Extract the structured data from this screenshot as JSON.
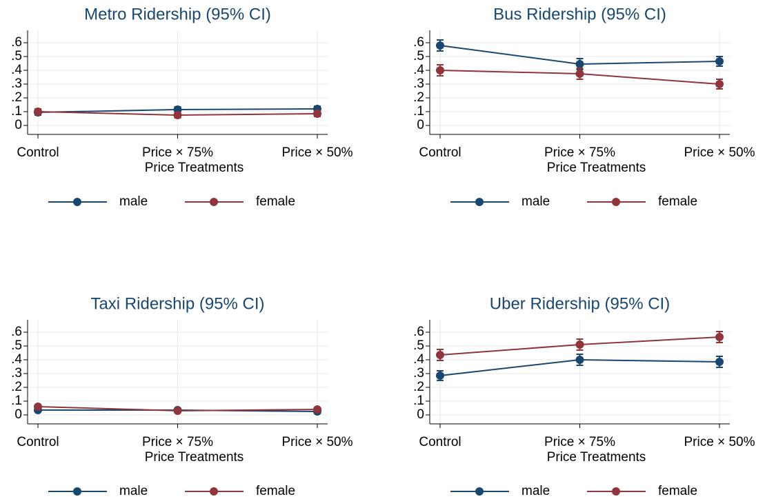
{
  "chart_data": [
    {
      "type": "line",
      "title": "Metro Ridership (95% CI)",
      "xlabel": "Price Treatments",
      "categories": [
        "Control",
        "Price × 75%",
        "Price × 50%"
      ],
      "series": [
        {
          "name": "male",
          "color": "#1a476f",
          "values": [
            0.095,
            0.115,
            0.12
          ],
          "errors": [
            0.02,
            0.02,
            0.02
          ]
        },
        {
          "name": "female",
          "color": "#90353b",
          "values": [
            0.1,
            0.075,
            0.085
          ],
          "errors": [
            0.02,
            0.02,
            0.02
          ]
        }
      ],
      "ylim": [
        -0.065,
        0.69
      ],
      "yticks": [
        0,
        {
          "value": 0.1,
          "label": ".1"
        },
        {
          "value": 0.2,
          "label": ".2"
        },
        {
          "value": 0.3,
          "label": ".3"
        },
        {
          "value": 0.4,
          "label": ".4"
        },
        {
          "value": 0.5,
          "label": ".5"
        },
        {
          "value": 0.6,
          "label": ".6"
        }
      ],
      "grid": true
    },
    {
      "type": "line",
      "title": "Bus Ridership (95% CI)",
      "xlabel": "Price Treatments",
      "categories": [
        "Control",
        "Price × 75%",
        "Price × 50%"
      ],
      "series": [
        {
          "name": "male",
          "color": "#1a476f",
          "values": [
            0.58,
            0.445,
            0.465
          ],
          "errors": [
            0.04,
            0.04,
            0.035
          ]
        },
        {
          "name": "female",
          "color": "#90353b",
          "values": [
            0.4,
            0.375,
            0.3
          ],
          "errors": [
            0.04,
            0.04,
            0.035
          ]
        }
      ],
      "ylim": [
        -0.065,
        0.69
      ],
      "yticks": [
        0,
        {
          "value": 0.1,
          "label": ".1"
        },
        {
          "value": 0.2,
          "label": ".2"
        },
        {
          "value": 0.3,
          "label": ".3"
        },
        {
          "value": 0.4,
          "label": ".4"
        },
        {
          "value": 0.5,
          "label": ".5"
        },
        {
          "value": 0.6,
          "label": ".6"
        }
      ],
      "grid": true
    },
    {
      "type": "line",
      "title": "Taxi Ridership (95% CI)",
      "xlabel": "Price Treatments",
      "categories": [
        "Control",
        "Price × 75%",
        "Price × 50%"
      ],
      "series": [
        {
          "name": "male",
          "color": "#1a476f",
          "values": [
            0.035,
            0.035,
            0.025
          ],
          "errors": [
            0.01,
            0.01,
            0.01
          ]
        },
        {
          "name": "female",
          "color": "#90353b",
          "values": [
            0.06,
            0.03,
            0.04
          ],
          "errors": [
            0.012,
            0.01,
            0.01
          ]
        }
      ],
      "ylim": [
        -0.065,
        0.69
      ],
      "yticks": [
        0,
        {
          "value": 0.1,
          "label": ".1"
        },
        {
          "value": 0.2,
          "label": ".2"
        },
        {
          "value": 0.3,
          "label": ".3"
        },
        {
          "value": 0.4,
          "label": ".4"
        },
        {
          "value": 0.5,
          "label": ".5"
        },
        {
          "value": 0.6,
          "label": ".6"
        }
      ],
      "grid": true
    },
    {
      "type": "line",
      "title": "Uber Ridership (95% CI)",
      "xlabel": "Price Treatments",
      "categories": [
        "Control",
        "Price × 75%",
        "Price × 50%"
      ],
      "series": [
        {
          "name": "male",
          "color": "#1a476f",
          "values": [
            0.285,
            0.4,
            0.385
          ],
          "errors": [
            0.035,
            0.04,
            0.04
          ]
        },
        {
          "name": "female",
          "color": "#90353b",
          "values": [
            0.435,
            0.51,
            0.565
          ],
          "errors": [
            0.04,
            0.04,
            0.04
          ]
        }
      ],
      "ylim": [
        -0.065,
        0.69
      ],
      "yticks": [
        0,
        {
          "value": 0.1,
          "label": ".1"
        },
        {
          "value": 0.2,
          "label": ".2"
        },
        {
          "value": 0.3,
          "label": ".3"
        },
        {
          "value": 0.4,
          "label": ".4"
        },
        {
          "value": 0.5,
          "label": ".5"
        },
        {
          "value": 0.6,
          "label": ".6"
        }
      ],
      "grid": true
    }
  ]
}
